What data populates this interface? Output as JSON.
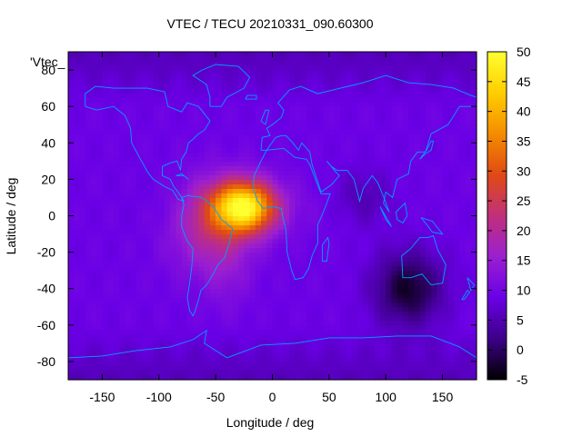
{
  "chart_data": {
    "type": "heatmap",
    "title": "VTEC / TECU 20210331_090.60300",
    "xlabel": "Longitude / deg",
    "ylabel": "Latitude / deg",
    "corner_label": "'Vtec_",
    "xlim": [
      -180,
      180
    ],
    "ylim": [
      -90,
      90
    ],
    "x_ticks": [
      -150,
      -100,
      -50,
      0,
      50,
      100,
      150
    ],
    "y_ticks": [
      -80,
      -60,
      -40,
      -20,
      0,
      20,
      40,
      60,
      80
    ],
    "colorbar": {
      "range": [
        -5,
        50
      ],
      "ticks": [
        -5,
        0,
        5,
        10,
        15,
        20,
        25,
        30,
        35,
        40,
        45,
        50
      ],
      "palette": [
        "#000000",
        "#3d0088",
        "#6a00e6",
        "#9b1fd0",
        "#c0307a",
        "#e04a14",
        "#f58c00",
        "#ffce00",
        "#ffff30"
      ]
    },
    "coastline_color": "#00a0ff",
    "field_peaks": [
      {
        "lon": -25,
        "lat": 5,
        "value": 48,
        "sx": 28,
        "sy": 14
      },
      {
        "lon": -55,
        "lat": -5,
        "value": 20,
        "sx": 35,
        "sy": 25
      },
      {
        "lon": -40,
        "lat": -30,
        "value": 12,
        "sx": 20,
        "sy": 22
      },
      {
        "lon": 30,
        "lat": 5,
        "value": 10,
        "sx": 35,
        "sy": 15
      },
      {
        "lon": -90,
        "lat": 5,
        "value": 8,
        "sx": 30,
        "sy": 18
      },
      {
        "lon": 80,
        "lat": 10,
        "value": 5,
        "sx": 25,
        "sy": 15
      }
    ],
    "field_background": 9,
    "field_low": {
      "lon": 120,
      "lat": -40,
      "value": -3,
      "sx": 30,
      "sy": 20
    }
  }
}
